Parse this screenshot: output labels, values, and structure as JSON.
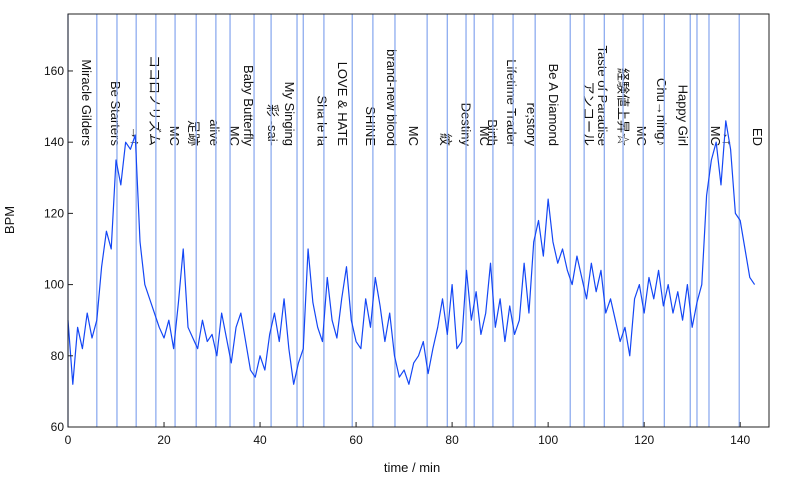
{
  "chart_data": {
    "type": "line",
    "xlabel": "time / min",
    "ylabel": "BPM",
    "xlim": [
      0,
      146
    ],
    "ylim": [
      60,
      176
    ],
    "xticks": [
      0,
      20,
      40,
      60,
      80,
      100,
      120,
      140
    ],
    "yticks": [
      60,
      80,
      100,
      120,
      140,
      160
    ],
    "color": "#1447f5",
    "marker_color": "#8eacef",
    "x": [
      0,
      1,
      2,
      3,
      4,
      5,
      6,
      7,
      8,
      9,
      10,
      11,
      12,
      13,
      14,
      15,
      16,
      17,
      18,
      19,
      20,
      21,
      22,
      23,
      24,
      25,
      26,
      27,
      28,
      29,
      30,
      31,
      32,
      33,
      34,
      35,
      36,
      37,
      38,
      39,
      40,
      41,
      42,
      43,
      44,
      45,
      46,
      47,
      48,
      49,
      50,
      51,
      52,
      53,
      54,
      55,
      56,
      57,
      58,
      59,
      60,
      61,
      62,
      63,
      64,
      65,
      66,
      67,
      68,
      69,
      70,
      71,
      72,
      73,
      74,
      75,
      76,
      77,
      78,
      79,
      80,
      81,
      82,
      83,
      84,
      85,
      86,
      87,
      88,
      89,
      90,
      91,
      92,
      93,
      94,
      95,
      96,
      97,
      98,
      99,
      100,
      101,
      102,
      103,
      104,
      105,
      106,
      107,
      108,
      109,
      110,
      111,
      112,
      113,
      114,
      115,
      116,
      117,
      118,
      119,
      120,
      121,
      122,
      123,
      124,
      125,
      126,
      127,
      128,
      129,
      130,
      131,
      132,
      133,
      134,
      135,
      136,
      137,
      138,
      139,
      140,
      141,
      142,
      143
    ],
    "values": [
      90,
      72,
      88,
      82,
      92,
      85,
      90,
      105,
      115,
      110,
      135,
      128,
      140,
      138,
      142,
      112,
      100,
      96,
      92,
      88,
      85,
      90,
      82,
      95,
      110,
      88,
      85,
      82,
      90,
      84,
      86,
      80,
      92,
      85,
      78,
      88,
      92,
      84,
      76,
      74,
      80,
      76,
      86,
      92,
      84,
      96,
      82,
      72,
      78,
      82,
      110,
      95,
      88,
      84,
      102,
      90,
      85,
      96,
      105,
      90,
      84,
      82,
      96,
      88,
      102,
      94,
      84,
      92,
      80,
      74,
      76,
      72,
      78,
      80,
      84,
      75,
      82,
      88,
      96,
      86,
      100,
      82,
      84,
      104,
      90,
      98,
      86,
      92,
      106,
      88,
      96,
      84,
      94,
      86,
      90,
      106,
      92,
      112,
      118,
      108,
      124,
      112,
      106,
      110,
      104,
      100,
      108,
      102,
      96,
      106,
      98,
      104,
      92,
      96,
      90,
      84,
      88,
      80,
      96,
      100,
      92,
      102,
      96,
      104,
      94,
      100,
      92,
      98,
      90,
      100,
      88,
      95,
      100,
      125,
      135,
      140,
      128,
      146,
      138,
      120,
      118,
      110,
      102,
      100
    ],
    "markers": [
      {
        "x": 0,
        "label": "Miracle Gilders"
      },
      {
        "x": 6.0,
        "label": "Be Starters"
      },
      {
        "x": 10.2,
        "label": "→↑"
      },
      {
        "x": 14.2,
        "label": "ココロノリズム"
      },
      {
        "x": 18.3,
        "label": "MC"
      },
      {
        "x": 22.3,
        "label": "足跡"
      },
      {
        "x": 26.7,
        "label": "alive"
      },
      {
        "x": 30.8,
        "label": "MC"
      },
      {
        "x": 33.75,
        "label": "Baby Butterfly"
      },
      {
        "x": 38.75,
        "label": "彩 -sai-"
      },
      {
        "x": 42.3,
        "label": "My Singing"
      },
      {
        "x": 47.7,
        "label": null
      },
      {
        "x": 49.0,
        "label": "Sha le la"
      },
      {
        "x": 53.3,
        "label": "LOVE & HATE"
      },
      {
        "x": 59.2,
        "label": "SHINE"
      },
      {
        "x": 63.5,
        "label": "brand-new blood"
      },
      {
        "x": 68.1,
        "label": "MC"
      },
      {
        "x": 74.8,
        "label": "紋"
      },
      {
        "x": 79.0,
        "label": "Destiny"
      },
      {
        "x": 82.9,
        "label": "MC"
      },
      {
        "x": 84.6,
        "label": "Birth"
      },
      {
        "x": 88.5,
        "label": "Lifetime Trader"
      },
      {
        "x": 92.7,
        "label": "re;story"
      },
      {
        "x": 97.3,
        "label": "Be A Diamond"
      },
      {
        "x": 104.6,
        "label": "アンコール"
      },
      {
        "x": 107.5,
        "label": "Taste of Paradise"
      },
      {
        "x": 111.7,
        "label": "経験値上昇☆"
      },
      {
        "x": 115.6,
        "label": "MC"
      },
      {
        "x": 119.8,
        "label": "Chu→ning♪"
      },
      {
        "x": 124.2,
        "label": "Happy Girl"
      },
      {
        "x": 129.6,
        "label": null
      },
      {
        "x": 131.0,
        "label": "MC"
      },
      {
        "x": 133.5,
        "label": "→↑"
      },
      {
        "x": 139.8,
        "label": "ED"
      }
    ]
  }
}
